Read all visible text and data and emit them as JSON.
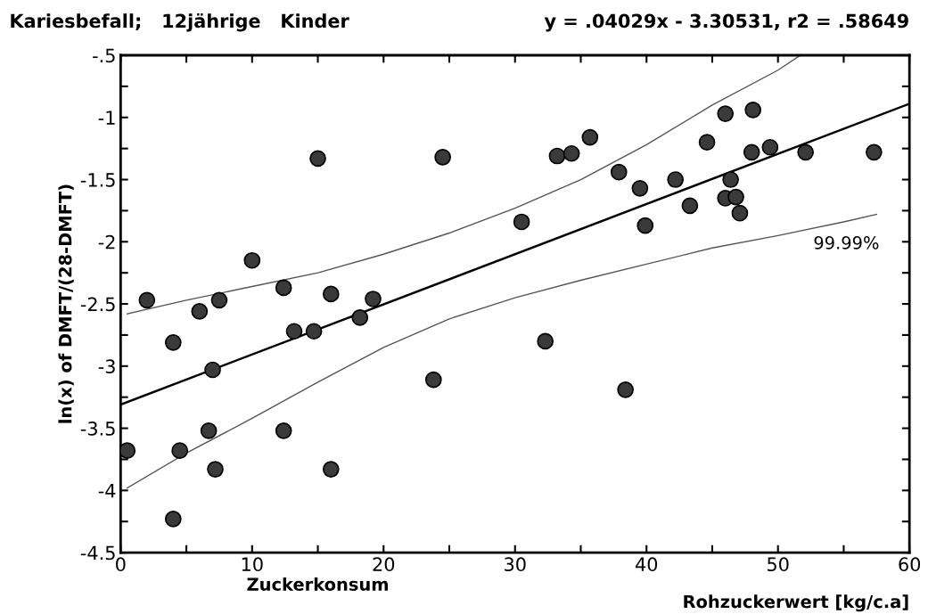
{
  "chart_data": {
    "type": "scatter",
    "title": "Kariesbefall;   12jährige   Kinder",
    "subtitle": "y = .04029x - 3.30531, r2 = .58649",
    "xlabel": "Zuckerkonsum",
    "ylabel": "ln(x) of DMFT/(28-DMFT)",
    "annotations": [
      "Rohzuckerwert [kg/c.a]",
      "99.99%"
    ],
    "marker": "circle",
    "grid": false,
    "legend": false,
    "xlim": [
      0,
      60
    ],
    "ylim": [
      -4.5,
      -0.5
    ],
    "xticks": [
      0,
      {
        "value": 5,
        "label": null
      },
      10,
      {
        "value": 15,
        "label": null
      },
      20,
      {
        "value": 25,
        "label": null
      },
      30,
      {
        "value": 35,
        "label": null
      },
      40,
      {
        "value": 45,
        "label": null
      },
      50,
      {
        "value": 55,
        "label": null
      },
      60
    ],
    "yticks": [
      {
        "value": -4.5,
        "label": "-4.5"
      },
      {
        "value": -4.25,
        "label": null
      },
      -4,
      {
        "value": -3.75,
        "label": null
      },
      -3.5,
      {
        "value": -3.25,
        "label": null
      },
      -3,
      {
        "value": -2.75,
        "label": null
      },
      -2.5,
      {
        "value": -2.25,
        "label": null
      },
      -2,
      {
        "value": -1.75,
        "label": null
      },
      -1.5,
      {
        "value": -1.25,
        "label": null
      },
      -1,
      {
        "value": -0.75,
        "label": null
      },
      {
        "value": -0.5,
        "label": "-.5"
      }
    ],
    "series": [
      {
        "color": "#3a3a3a",
        "x": [
          0.5,
          2,
          4,
          4,
          4.5,
          6,
          6.7,
          7,
          7.2,
          7.5,
          10,
          12.4,
          12.4,
          13.2,
          14.7,
          15,
          16,
          16,
          18.2,
          19.2,
          23.8,
          24.5,
          30.5,
          32.3,
          33.2,
          34.3,
          35.7,
          37.9,
          38.4,
          39.5,
          39.9,
          42.2,
          43.3,
          44.6,
          46,
          46,
          46.4,
          46.8,
          47.1,
          48,
          48.1,
          49.4,
          52.1,
          57.3
        ],
        "values": [
          -3.68,
          -2.47,
          -2.81,
          -4.23,
          -3.68,
          -2.56,
          -3.52,
          -3.03,
          -3.83,
          -2.47,
          -2.15,
          -2.37,
          -3.52,
          -2.72,
          -2.72,
          -1.33,
          -2.42,
          -3.83,
          -2.61,
          -2.46,
          -3.11,
          -1.32,
          -1.84,
          -2.8,
          -1.31,
          -1.29,
          -1.16,
          -1.44,
          -3.19,
          -1.57,
          -1.87,
          -1.5,
          -1.71,
          -1.2,
          -0.97,
          -1.65,
          -1.5,
          -1.64,
          -1.77,
          -1.28,
          -0.94,
          -1.24,
          -1.28,
          -1.28
        ]
      },
      {
        "type": "line",
        "color": "#000000",
        "line_style": "solid",
        "marker": "none",
        "x": [
          0,
          60
        ],
        "values": [
          -3.31,
          -0.89
        ]
      },
      {
        "type": "line",
        "color": "#555555",
        "line_style": "solid",
        "marker": "none",
        "x": [
          0.5,
          5,
          10,
          15,
          20,
          25,
          30,
          35,
          40,
          45,
          50,
          51.7
        ],
        "values": [
          -2.58,
          -2.47,
          -2.36,
          -2.25,
          -2.1,
          -1.93,
          -1.73,
          -1.5,
          -1.22,
          -0.9,
          -0.62,
          -0.5
        ]
      },
      {
        "type": "line",
        "color": "#555555",
        "line_style": "solid",
        "marker": "none",
        "x": [
          0.5,
          5,
          10,
          15,
          20,
          25,
          30,
          35,
          40,
          45,
          50,
          55,
          57.5
        ],
        "values": [
          -3.98,
          -3.7,
          -3.42,
          -3.13,
          -2.85,
          -2.62,
          -2.45,
          -2.31,
          -2.18,
          -2.05,
          -1.95,
          -1.84,
          -1.78
        ]
      }
    ]
  }
}
